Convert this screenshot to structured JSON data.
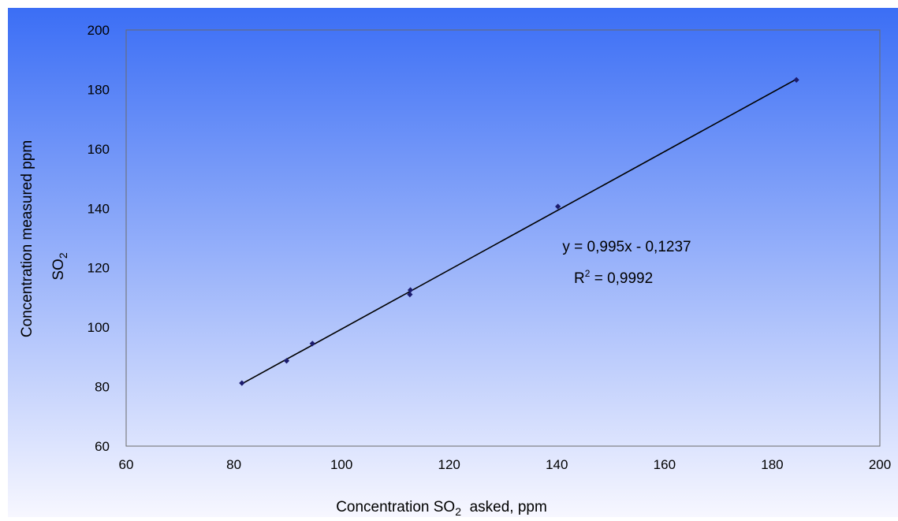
{
  "chart_data": {
    "type": "scatter",
    "title": "",
    "xlabel": {
      "prefix": "Concentration SO",
      "sub": "2",
      "suffix": "  asked, ppm"
    },
    "ylabel": {
      "line1": "Concentration measured ppm",
      "line2_prefix": "SO",
      "line2_sub": "2"
    },
    "xlim": [
      60,
      200
    ],
    "ylim": [
      60,
      200
    ],
    "x_ticks": [
      60,
      80,
      100,
      120,
      140,
      160,
      180,
      200
    ],
    "y_ticks": [
      60,
      80,
      100,
      120,
      140,
      160,
      180,
      200
    ],
    "grid": false,
    "series": [
      {
        "x": [
          81.5,
          89.8,
          94.6,
          112.7,
          112.8,
          140.2,
          184.5
        ],
        "y": [
          81.2,
          88.7,
          94.5,
          111.0,
          112.5,
          140.6,
          183.2
        ]
      }
    ],
    "trendline": {
      "type": "linear",
      "slope": 0.995,
      "intercept": -0.1237,
      "x_range": [
        81.5,
        184.5
      ]
    },
    "annotations": {
      "equation": "y = 0,995x - 0,1237",
      "r2_prefix": "R",
      "r2_sup": "2",
      "r2_suffix": " = 0,9992"
    },
    "colors": {
      "plot_top": "#3b6ef5",
      "plot_bottom": "#f7f7ff",
      "marker": "#1c1c6e",
      "trendline": "#000000",
      "axis": "#555555"
    }
  }
}
